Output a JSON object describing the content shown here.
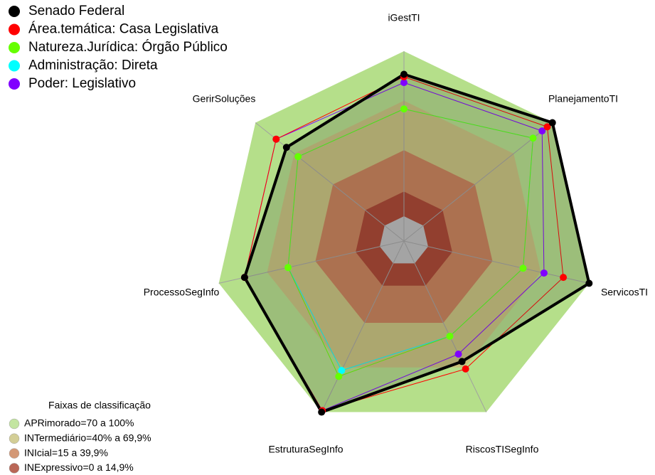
{
  "chart_data": {
    "type": "radar",
    "categories": [
      "iGestTI",
      "PlanejamentoTI",
      "ServicosTI",
      "RiscosTISegInfo",
      "EstruturaSegInfo",
      "ProcessoSegInfo",
      "GerirSoluções"
    ],
    "ylim": [
      -15,
      100
    ],
    "series": [
      {
        "name": "Senado Federal",
        "color": "#000000",
        "values": [
          86,
          100,
          100,
          66,
          100,
          84,
          76
        ]
      },
      {
        "name": "Área.temática: Casa Legislativa",
        "color": "#ff0000",
        "values": [
          84.5,
          96,
          84,
          71,
          99,
          84,
          84
        ]
      },
      {
        "name": "Natureza.Jurídica: Órgão Público",
        "color": "#66ff00",
        "values": [
          65,
          85,
          59,
          49,
          76,
          57,
          67
        ]
      },
      {
        "name": "Administração: Direta",
        "color": "#00ffff",
        "values": [
          65,
          85,
          59,
          49,
          72,
          57,
          67
        ]
      },
      {
        "name": "Poder: Legislativo",
        "color": "#8000ff",
        "values": [
          81,
          92,
          72,
          61,
          99,
          84,
          84
        ]
      }
    ],
    "bands_title": "Faixas de classificação",
    "bands": [
      {
        "label": "APRimorado=70 a 100%",
        "from": 70,
        "to": 100,
        "color": "#b5df8a"
      },
      {
        "label": "INTermediário=40% a 69,9%",
        "from": 40,
        "to": 70,
        "color": "#c9c27c"
      },
      {
        "label": "INIcial=15 a 39,9%",
        "from": 15,
        "to": 40,
        "color": "#c97f55"
      },
      {
        "label": "INExpressivo=0 a 14,9%",
        "from": 0,
        "to": 15,
        "color": "#a8402c"
      }
    ]
  }
}
